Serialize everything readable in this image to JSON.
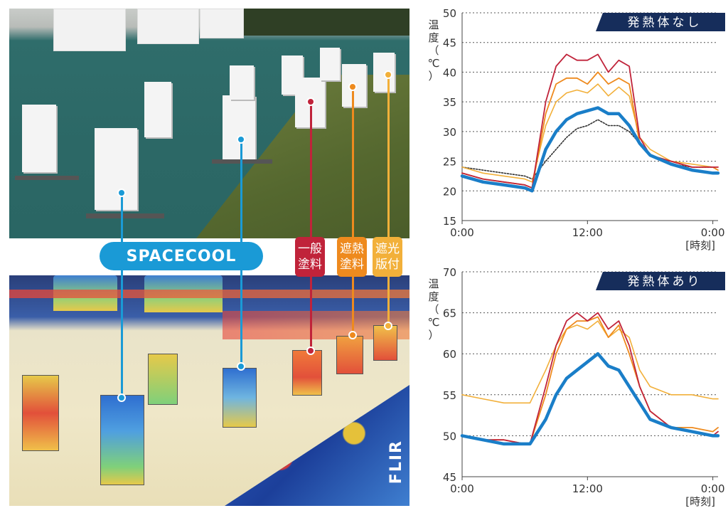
{
  "colors": {
    "spacecool": "#1a7ec8",
    "general_paint": "#c0233a",
    "heat_paint": "#ee8a1e",
    "shade_plate": "#f2b03a",
    "ambient": "#333333",
    "title_bg": "#162d5b"
  },
  "labels": {
    "spacecool": "SPACECOOL",
    "general_paint": "一般塗料",
    "heat_paint": "遮熱塗料",
    "shade_plate": "遮光版付",
    "thermal_brand": "FLIR"
  },
  "chart_data": [
    {
      "type": "line",
      "title": "発熱体なし",
      "ylabel": "温度（℃）",
      "xlabel": "[時刻]",
      "ylim": [
        15,
        50
      ],
      "yticks": [
        15,
        20,
        25,
        30,
        35,
        40,
        45,
        50
      ],
      "xticks": [
        "0:00",
        "12:00",
        "0:00"
      ],
      "xticks_hours": [
        0,
        12,
        24
      ],
      "xlim_hours": [
        0,
        24.5
      ],
      "grid": true,
      "x": [
        0,
        2,
        4,
        6,
        6.7,
        8,
        9,
        10,
        11,
        12,
        13,
        14,
        15,
        16,
        17,
        18,
        20,
        22,
        24,
        24.5
      ],
      "series": [
        {
          "key": "general_paint",
          "values": [
            23,
            22,
            21.5,
            21,
            20.5,
            35,
            41,
            43,
            42,
            42,
            43,
            40,
            42,
            41,
            29,
            26,
            25,
            24,
            24,
            24
          ]
        },
        {
          "key": "heat_paint",
          "values": [
            23,
            22,
            21.5,
            21,
            20.5,
            33,
            38,
            39,
            39,
            38,
            40,
            38,
            39,
            38,
            28,
            26,
            25,
            24,
            24,
            23.5
          ]
        },
        {
          "key": "shade_plate",
          "values": [
            24,
            23,
            22.5,
            22,
            21.5,
            31,
            35,
            36.5,
            37,
            36.5,
            38,
            36,
            37.5,
            36,
            29,
            27,
            25,
            24.5,
            24,
            24
          ]
        },
        {
          "key": "spacecool",
          "values": [
            22.5,
            21.5,
            21,
            20.5,
            20,
            27,
            30,
            32,
            33,
            33.5,
            34,
            33,
            33,
            31,
            28,
            26,
            24.5,
            23.5,
            23,
            23
          ]
        },
        {
          "key": "ambient",
          "dashed": true,
          "values": [
            24,
            23.5,
            23,
            22.5,
            22,
            25,
            27,
            29,
            30.5,
            31,
            32,
            31,
            31,
            30,
            28,
            26,
            24.5,
            24,
            24,
            23.5
          ]
        }
      ]
    },
    {
      "type": "line",
      "title": "発熱体あり",
      "ylabel": "温度（℃）",
      "xlabel": "[時刻]",
      "ylim": [
        45,
        70
      ],
      "yticks": [
        45,
        50,
        55,
        60,
        65,
        70
      ],
      "xticks": [
        "0:00",
        "12:00",
        "0:00"
      ],
      "xticks_hours": [
        0,
        12,
        24
      ],
      "xlim_hours": [
        0,
        24.5
      ],
      "grid": true,
      "x": [
        0,
        2,
        4,
        6,
        6.5,
        8,
        9,
        10,
        11,
        12,
        13,
        14,
        15,
        16,
        17,
        18,
        20,
        22,
        24,
        24.5
      ],
      "series": [
        {
          "key": "general_paint",
          "values": [
            50,
            49.5,
            49.5,
            49,
            49,
            56,
            61,
            64,
            65,
            64,
            65,
            63,
            64,
            61,
            56,
            53,
            51,
            50.5,
            50,
            50.5
          ]
        },
        {
          "key": "heat_paint",
          "values": [
            50,
            49.5,
            49.5,
            49,
            49,
            55,
            60,
            63,
            64,
            64,
            64.5,
            62,
            63.5,
            60,
            56,
            53,
            51,
            51,
            50.5,
            51
          ]
        },
        {
          "key": "shade_plate",
          "values": [
            55,
            54.5,
            54,
            54,
            54,
            58,
            61,
            63,
            63.5,
            63,
            64,
            62,
            63,
            62,
            58,
            56,
            55,
            55,
            54.5,
            54.5
          ]
        },
        {
          "key": "spacecool",
          "values": [
            50,
            49.5,
            49,
            49,
            49,
            52,
            55,
            57,
            58,
            59,
            60,
            58.5,
            58,
            56,
            54,
            52,
            51,
            50.5,
            50,
            50
          ]
        }
      ]
    }
  ]
}
